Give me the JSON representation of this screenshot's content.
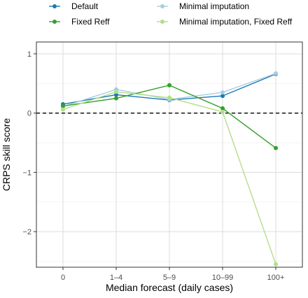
{
  "chart_data": {
    "type": "line",
    "categories": [
      "0",
      "1–4",
      "5–9",
      "10–99",
      "100+"
    ],
    "xlabel": "Median forecast (daily cases)",
    "ylabel": "CRPS skill score",
    "ylim": [
      -2.6,
      1.2
    ],
    "yticks": [
      1,
      0,
      -1,
      -2
    ],
    "reference_line": {
      "y": 0,
      "style": "dashed"
    },
    "grid": true,
    "legend_position": "top",
    "series": [
      {
        "name": "Default",
        "color": "#1f78b4",
        "values": [
          0.15,
          0.31,
          0.22,
          0.29,
          0.66
        ]
      },
      {
        "name": "Minimal imputation",
        "color": "#a6cee3",
        "values": [
          0.11,
          0.4,
          0.23,
          0.35,
          0.67
        ]
      },
      {
        "name": "Fixed Reff",
        "color": "#33a02c",
        "values": [
          0.12,
          0.25,
          0.47,
          0.08,
          -0.59
        ]
      },
      {
        "name": "Minimal imputation, Fixed Reff",
        "color": "#b2df8a",
        "values": [
          0.06,
          0.36,
          0.26,
          0.02,
          -2.55
        ]
      }
    ]
  }
}
